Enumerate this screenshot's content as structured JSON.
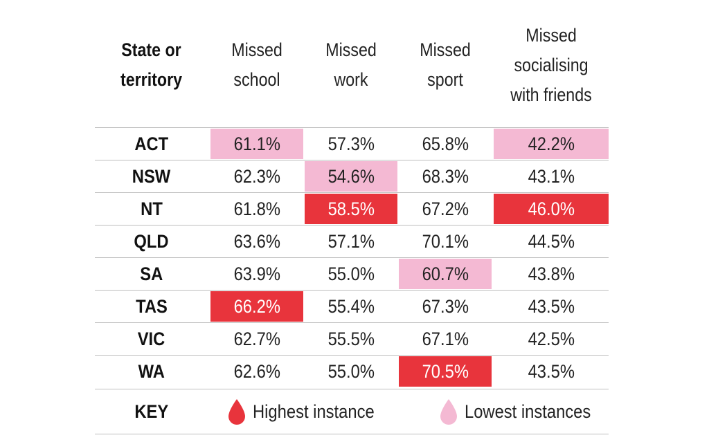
{
  "chart_data": {
    "type": "table",
    "columns": [
      "State or\nterritory",
      "Missed\nschool",
      "Missed\nwork",
      "Missed\nsport",
      "Missed\nsocialising\nwith friends"
    ],
    "rows": [
      {
        "state": "ACT",
        "values": [
          "61.1%",
          "57.3%",
          "65.8%",
          "42.2%"
        ],
        "highlight": [
          "low",
          "",
          "",
          "low"
        ]
      },
      {
        "state": "NSW",
        "values": [
          "62.3%",
          "54.6%",
          "68.3%",
          "43.1%"
        ],
        "highlight": [
          "",
          "low",
          "",
          ""
        ]
      },
      {
        "state": "NT",
        "values": [
          "61.8%",
          "58.5%",
          "67.2%",
          "46.0%"
        ],
        "highlight": [
          "",
          "high",
          "",
          "high"
        ]
      },
      {
        "state": "QLD",
        "values": [
          "63.6%",
          "57.1%",
          "70.1%",
          "44.5%"
        ],
        "highlight": [
          "",
          "",
          "",
          ""
        ]
      },
      {
        "state": "SA",
        "values": [
          "63.9%",
          "55.0%",
          "60.7%",
          "43.8%"
        ],
        "highlight": [
          "",
          "",
          "low",
          ""
        ]
      },
      {
        "state": "TAS",
        "values": [
          "66.2%",
          "55.4%",
          "67.3%",
          "43.5%"
        ],
        "highlight": [
          "high",
          "",
          "",
          ""
        ]
      },
      {
        "state": "VIC",
        "values": [
          "62.7%",
          "55.5%",
          "67.1%",
          "42.5%"
        ],
        "highlight": [
          "",
          "",
          "",
          ""
        ]
      },
      {
        "state": "WA",
        "values": [
          "62.6%",
          "55.0%",
          "70.5%",
          "43.5%"
        ],
        "highlight": [
          "",
          "",
          "high",
          ""
        ]
      }
    ],
    "key": {
      "label": "KEY",
      "high_label": "Highest instance",
      "low_label": "Lowest instances"
    },
    "colors": {
      "high": "#e8343c",
      "low": "#f4b9d3",
      "rule": "#bdbdbd"
    }
  }
}
